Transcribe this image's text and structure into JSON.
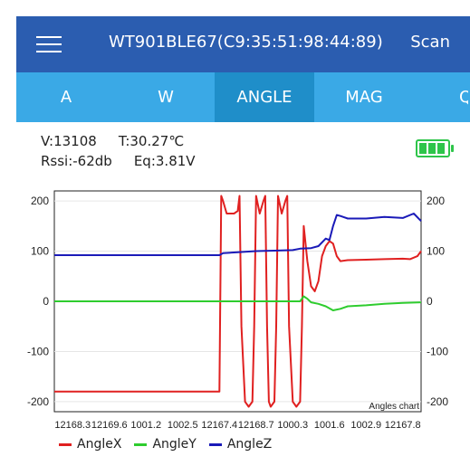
{
  "header": {
    "title": "WT901BLE67(C9:35:51:98:44:89)",
    "scan_label": "Scan"
  },
  "tabs": [
    {
      "label": "A",
      "active": false
    },
    {
      "label": "W",
      "active": false
    },
    {
      "label": "ANGLE",
      "active": true
    },
    {
      "label": "MAG",
      "active": false
    }
  ],
  "info": {
    "voltage": "V:13108",
    "temperature": "T:30.27℃",
    "rssi": "Rssi:-62db",
    "eq": "Eq:3.81V"
  },
  "battery": {
    "level": 1.0,
    "color": "#2ec54a"
  },
  "chart_data": {
    "type": "line",
    "annotation": "Angles chart",
    "yticks": [
      200,
      100,
      0,
      -100,
      -200
    ],
    "ylim": [
      -220,
      220
    ],
    "xtick_labels": [
      "12168.3",
      "12169.6",
      "1001.2",
      "1002.5",
      "12167.4",
      "12168.7",
      "1000.3",
      "1001.6",
      "1002.9",
      "12167.8"
    ],
    "series": [
      {
        "name": "AngleX",
        "color": "#e02020",
        "points": [
          [
            0,
            -180
          ],
          [
            0.45,
            -180
          ],
          [
            0.455,
            210
          ],
          [
            0.46,
            200
          ],
          [
            0.47,
            175
          ],
          [
            0.49,
            175
          ],
          [
            0.5,
            180
          ],
          [
            0.505,
            210
          ],
          [
            0.51,
            -50
          ],
          [
            0.52,
            -200
          ],
          [
            0.53,
            -210
          ],
          [
            0.54,
            -200
          ],
          [
            0.545,
            -50
          ],
          [
            0.55,
            210
          ],
          [
            0.56,
            175
          ],
          [
            0.57,
            200
          ],
          [
            0.575,
            210
          ],
          [
            0.58,
            -50
          ],
          [
            0.585,
            -200
          ],
          [
            0.59,
            -210
          ],
          [
            0.6,
            -200
          ],
          [
            0.605,
            -50
          ],
          [
            0.61,
            210
          ],
          [
            0.62,
            175
          ],
          [
            0.63,
            200
          ],
          [
            0.635,
            210
          ],
          [
            0.64,
            -50
          ],
          [
            0.65,
            -200
          ],
          [
            0.66,
            -210
          ],
          [
            0.67,
            -200
          ],
          [
            0.675,
            -50
          ],
          [
            0.68,
            150
          ],
          [
            0.69,
            80
          ],
          [
            0.7,
            30
          ],
          [
            0.71,
            20
          ],
          [
            0.72,
            40
          ],
          [
            0.73,
            90
          ],
          [
            0.74,
            110
          ],
          [
            0.75,
            120
          ],
          [
            0.76,
            115
          ],
          [
            0.77,
            90
          ],
          [
            0.78,
            80
          ],
          [
            0.8,
            82
          ],
          [
            0.85,
            83
          ],
          [
            0.9,
            84
          ],
          [
            0.95,
            85
          ],
          [
            0.97,
            84
          ],
          [
            0.99,
            90
          ],
          [
            1.0,
            100
          ]
        ]
      },
      {
        "name": "AngleY",
        "color": "#2ecc2e",
        "points": [
          [
            0,
            0
          ],
          [
            0.45,
            0
          ],
          [
            0.6,
            0
          ],
          [
            0.67,
            0
          ],
          [
            0.68,
            10
          ],
          [
            0.69,
            5
          ],
          [
            0.7,
            -2
          ],
          [
            0.72,
            -5
          ],
          [
            0.74,
            -10
          ],
          [
            0.76,
            -18
          ],
          [
            0.78,
            -15
          ],
          [
            0.8,
            -10
          ],
          [
            0.85,
            -8
          ],
          [
            0.9,
            -5
          ],
          [
            0.95,
            -3
          ],
          [
            1.0,
            -2
          ]
        ]
      },
      {
        "name": "AngleZ",
        "color": "#1a1ab8",
        "points": [
          [
            0,
            92
          ],
          [
            0.45,
            92
          ],
          [
            0.46,
            96
          ],
          [
            0.5,
            98
          ],
          [
            0.55,
            100
          ],
          [
            0.6,
            101
          ],
          [
            0.65,
            102
          ],
          [
            0.67,
            105
          ],
          [
            0.7,
            106
          ],
          [
            0.72,
            110
          ],
          [
            0.74,
            125
          ],
          [
            0.75,
            122
          ],
          [
            0.76,
            150
          ],
          [
            0.77,
            172
          ],
          [
            0.78,
            170
          ],
          [
            0.8,
            165
          ],
          [
            0.85,
            165
          ],
          [
            0.9,
            168
          ],
          [
            0.95,
            166
          ],
          [
            0.98,
            175
          ],
          [
            1.0,
            160
          ]
        ]
      }
    ]
  },
  "legend": [
    {
      "label": "AngleX",
      "color": "#e02020"
    },
    {
      "label": "AngleY",
      "color": "#2ecc2e"
    },
    {
      "label": "AngleZ",
      "color": "#1a1ab8"
    }
  ]
}
